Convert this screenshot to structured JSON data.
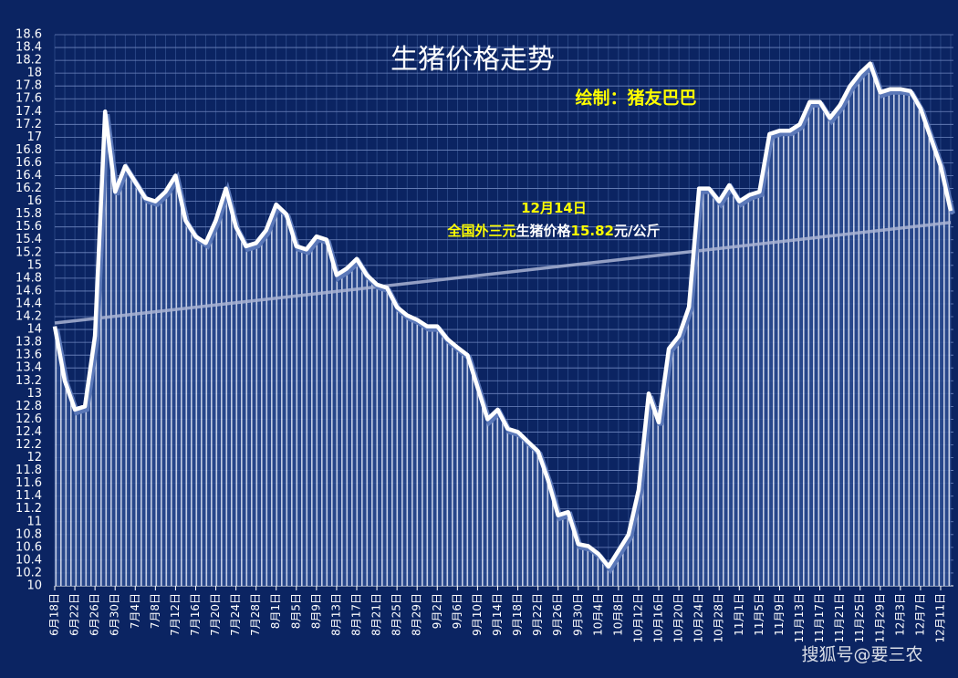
{
  "chart_data": {
    "type": "line",
    "title": "生猪价格走势",
    "subtitle": "绘制：猪友巴巴",
    "subtitle_color": "#ffff00",
    "annotations": [
      {
        "parts": [
          {
            "text": "12月14日",
            "color": "#ffff00"
          }
        ]
      },
      {
        "parts": [
          {
            "text": "全国外三元",
            "color": "#ffff00"
          },
          {
            "text": "生猪价格",
            "color": "#ffffff"
          },
          {
            "text": "15.82",
            "color": "#ffff00"
          },
          {
            "text": "元/",
            "color": "#ffffff"
          },
          {
            "text": "公斤",
            "color": "#ffffff"
          }
        ]
      }
    ],
    "watermark": "搜狐号@要三农",
    "categories": [
      "6月18日",
      null,
      "6月22日",
      null,
      "6月26日",
      null,
      "6月30日",
      null,
      "7月4日",
      null,
      "7月8日",
      null,
      "7月12日",
      null,
      "7月16日",
      null,
      "7月20日",
      null,
      "7月24日",
      null,
      "7月28日",
      null,
      "8月1日",
      null,
      "8月5日",
      null,
      "8月9日",
      null,
      "8月13日",
      null,
      "8月17日",
      null,
      "8月21日",
      null,
      "8月25日",
      null,
      "8月29日",
      null,
      "9月2日",
      null,
      "9月6日",
      null,
      "9月10日",
      null,
      "9月14日",
      null,
      "9月18日",
      null,
      "9月22日",
      null,
      "9月26日",
      null,
      "9月30日",
      null,
      "10月4日",
      null,
      "10月8日",
      null,
      "10月12日",
      null,
      "10月16日",
      null,
      "10月20日",
      null,
      "10月24日",
      null,
      "10月28日",
      null,
      "11月1日",
      null,
      "11月5日",
      null,
      "11月9日",
      null,
      "11月13日",
      null,
      "11月17日",
      null,
      "11月21日",
      null,
      "11月25日",
      null,
      "11月29日",
      null,
      "12月3日",
      null,
      "12月7日",
      null,
      "12月11日",
      null
    ],
    "series": [
      {
        "color": "#ffffff",
        "values": [
          14.05,
          13.2,
          12.75,
          12.8,
          13.9,
          17.4,
          16.15,
          16.55,
          16.3,
          16.05,
          16.0,
          16.15,
          16.4,
          15.7,
          15.45,
          15.35,
          15.7,
          16.2,
          15.6,
          15.3,
          15.35,
          15.55,
          15.95,
          15.8,
          15.3,
          15.25,
          15.45,
          15.4,
          14.85,
          14.95,
          15.1,
          14.85,
          14.7,
          14.65,
          14.35,
          14.22,
          14.15,
          14.05,
          14.05,
          13.85,
          13.72,
          13.6,
          13.1,
          12.6,
          12.75,
          12.45,
          12.4,
          12.25,
          12.1,
          11.65,
          11.1,
          11.15,
          10.65,
          10.62,
          10.5,
          10.3,
          10.55,
          10.8,
          11.5,
          13.0,
          12.55,
          13.7,
          13.9,
          14.35,
          16.2,
          16.2,
          16.0,
          16.25,
          16.0,
          16.1,
          16.15,
          17.05,
          17.1,
          17.1,
          17.2,
          17.55,
          17.55,
          17.3,
          17.5,
          17.8,
          18.0,
          18.15,
          17.7,
          17.75,
          17.75,
          17.72,
          17.45,
          17.0,
          16.55,
          15.85
        ]
      }
    ],
    "trendline": {
      "color": "#aab4d4",
      "values": [
        14.1,
        15.67
      ]
    },
    "ylim": [
      10,
      18.6
    ],
    "yticks": [
      10,
      10.2,
      10.4,
      10.6,
      10.8,
      11,
      11.2,
      11.4,
      11.6,
      11.8,
      12,
      12.2,
      12.4,
      12.6,
      12.8,
      13,
      13.2,
      13.4,
      13.6,
      13.8,
      14,
      14.2,
      14.4,
      14.6,
      14.8,
      15,
      15.2,
      15.4,
      15.6,
      15.8,
      16,
      16.2,
      16.4,
      16.6,
      16.8,
      17,
      17.2,
      17.4,
      17.6,
      17.8,
      18,
      18.2,
      18.4,
      18.6
    ],
    "grid": true
  }
}
